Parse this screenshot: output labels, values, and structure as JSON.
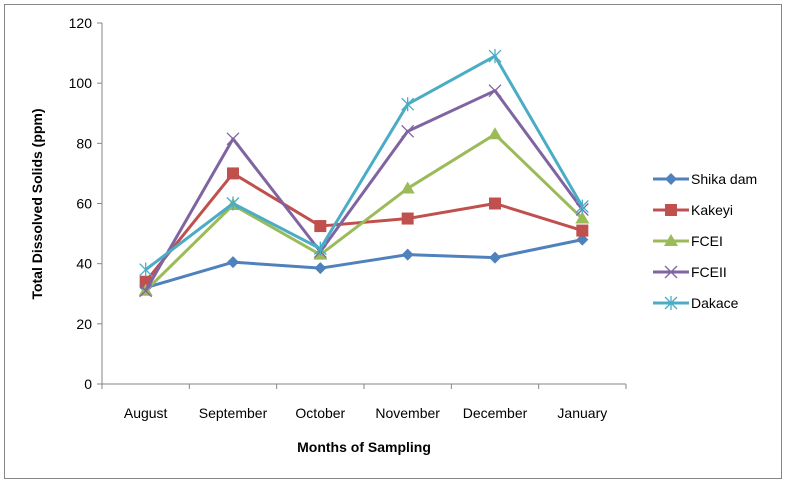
{
  "chart_data": {
    "type": "line",
    "title": "",
    "xlabel": "Months of Sampling",
    "ylabel": "Total Dissolved Solids (ppm)",
    "categories": [
      "August",
      "September",
      "October",
      "November",
      "December",
      "January"
    ],
    "ylim": [
      0,
      120
    ],
    "yticks": [
      0,
      20,
      40,
      60,
      80,
      100,
      120
    ],
    "ytick_labels": [
      "0",
      "20",
      "40",
      "60",
      "80",
      "100",
      "120"
    ],
    "grid": false,
    "legend_position": "right",
    "series": [
      {
        "name": "Shika dam",
        "color": "#4F81BD",
        "marker": "diamond",
        "values": [
          32,
          40.5,
          38.5,
          43,
          42,
          48
        ]
      },
      {
        "name": "Kakeyi",
        "color": "#C0504D",
        "marker": "square",
        "values": [
          34,
          70,
          52.5,
          55,
          60,
          51
        ]
      },
      {
        "name": "FCEI",
        "color": "#9BBB59",
        "marker": "triangle",
        "values": [
          31,
          59.5,
          43,
          65,
          83,
          55
        ]
      },
      {
        "name": "FCEII",
        "color": "#8064A2",
        "marker": "x",
        "values": [
          31,
          81.5,
          44,
          84,
          97.5,
          58
        ]
      },
      {
        "name": "Dakace",
        "color": "#4BACC6",
        "marker": "star",
        "values": [
          38,
          60,
          45,
          93,
          109,
          59
        ]
      }
    ]
  }
}
